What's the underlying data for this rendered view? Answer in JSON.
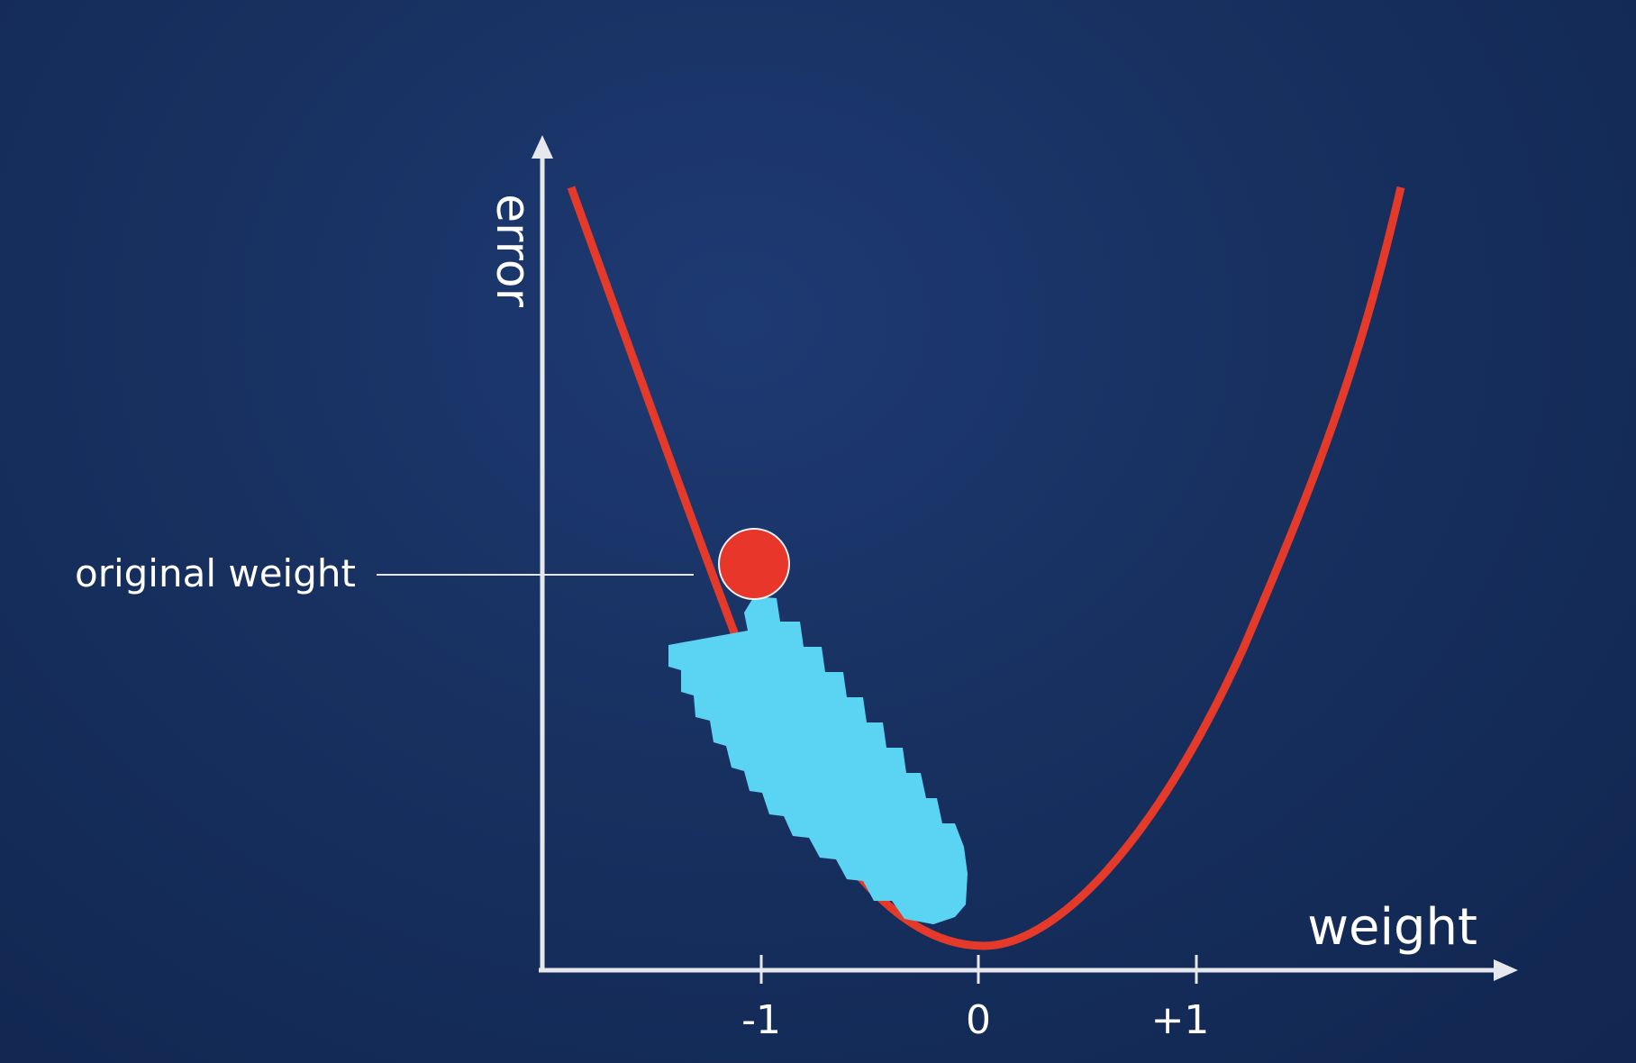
{
  "axes": {
    "x_label": "weight",
    "y_label": "error"
  },
  "ticks": [
    {
      "value": -1,
      "label": "-1"
    },
    {
      "value": 0,
      "label": "0"
    },
    {
      "value": 1,
      "label": "+1"
    }
  ],
  "annotation": {
    "text": "original weight"
  },
  "colors": {
    "curve": "#e53a2a",
    "ball": "#e8372a",
    "arrow": "#5ad4f2",
    "axis": "#e6e8ee",
    "text": "#ffffff"
  }
}
